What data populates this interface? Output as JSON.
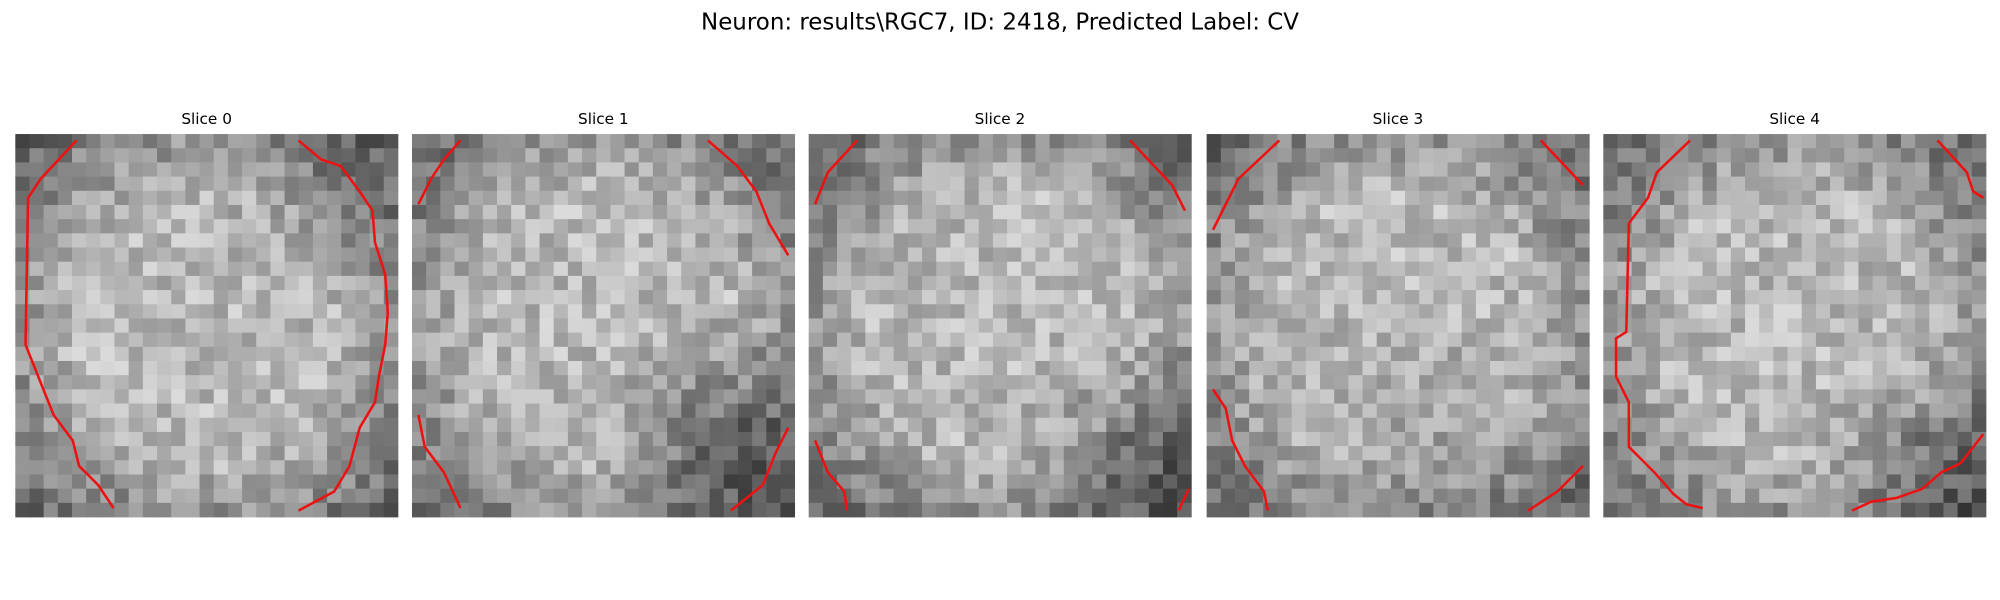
{
  "header": {
    "title": "Neuron: results\\RGC7, ID: 2418, Predicted Label: CV"
  },
  "panels": [
    {
      "title": "Slice 0"
    },
    {
      "title": "Slice 1"
    },
    {
      "title": "Slice 2"
    },
    {
      "title": "Slice 3"
    },
    {
      "title": "Slice 4"
    }
  ]
}
